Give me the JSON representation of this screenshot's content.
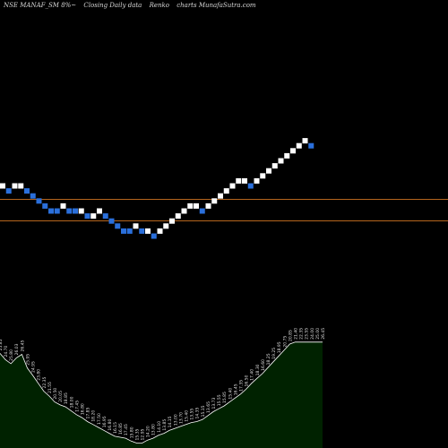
{
  "header": {
    "symbol": "NSE MANAF_SM 8%~",
    "desc": "Closing Daily data",
    "type": "Renko",
    "credit": "charts MunafaSutra.com"
  },
  "colors": {
    "background": "#000000",
    "up_brick": "#ffffff",
    "down_brick": "#2a6fdb",
    "level_lines": "#b5651d",
    "area_fill": "#002200",
    "area_line": "#ffffff"
  },
  "chart_data": {
    "type": "renko",
    "bricks": [
      {
        "dir": "up",
        "level": 0
      },
      {
        "dir": "down",
        "level": -1
      },
      {
        "dir": "up",
        "level": 0
      },
      {
        "dir": "up",
        "level": 0
      },
      {
        "dir": "down",
        "level": -1
      },
      {
        "dir": "down",
        "level": -2
      },
      {
        "dir": "down",
        "level": -3
      },
      {
        "dir": "down",
        "level": -4
      },
      {
        "dir": "down",
        "level": -5
      },
      {
        "dir": "down",
        "level": -5
      },
      {
        "dir": "up",
        "level": -4
      },
      {
        "dir": "down",
        "level": -5
      },
      {
        "dir": "down",
        "level": -5
      },
      {
        "dir": "up",
        "level": -5
      },
      {
        "dir": "down",
        "level": -6
      },
      {
        "dir": "up",
        "level": -6
      },
      {
        "dir": "up",
        "level": -5
      },
      {
        "dir": "down",
        "level": -6
      },
      {
        "dir": "down",
        "level": -7
      },
      {
        "dir": "down",
        "level": -8
      },
      {
        "dir": "down",
        "level": -9
      },
      {
        "dir": "down",
        "level": -9
      },
      {
        "dir": "up",
        "level": -8
      },
      {
        "dir": "down",
        "level": -9
      },
      {
        "dir": "up",
        "level": -9
      },
      {
        "dir": "down",
        "level": -10
      },
      {
        "dir": "up",
        "level": -9
      },
      {
        "dir": "up",
        "level": -8
      },
      {
        "dir": "up",
        "level": -7
      },
      {
        "dir": "up",
        "level": -6
      },
      {
        "dir": "up",
        "level": -5
      },
      {
        "dir": "up",
        "level": -4
      },
      {
        "dir": "up",
        "level": -4
      },
      {
        "dir": "down",
        "level": -5
      },
      {
        "dir": "up",
        "level": -4
      },
      {
        "dir": "up",
        "level": -3
      },
      {
        "dir": "up",
        "level": -2
      },
      {
        "dir": "up",
        "level": -1
      },
      {
        "dir": "up",
        "level": 0
      },
      {
        "dir": "up",
        "level": 1
      },
      {
        "dir": "up",
        "level": 1
      },
      {
        "dir": "down",
        "level": 0
      },
      {
        "dir": "up",
        "level": 1
      },
      {
        "dir": "up",
        "level": 2
      },
      {
        "dir": "up",
        "level": 3
      },
      {
        "dir": "up",
        "level": 4
      },
      {
        "dir": "up",
        "level": 5
      },
      {
        "dir": "up",
        "level": 6
      },
      {
        "dir": "up",
        "level": 7
      },
      {
        "dir": "up",
        "level": 8
      },
      {
        "dir": "up",
        "level": 9
      },
      {
        "dir": "down",
        "level": 8
      }
    ],
    "level_lines": [
      23.0,
      21.8
    ],
    "close_area": {
      "values": [
        26.45,
        25.8,
        25.4,
        26.0,
        26.35,
        24.95,
        24.2,
        23.4,
        22.6,
        22.1,
        21.5,
        21.2,
        21.0,
        20.6,
        20.2,
        19.9,
        19.5,
        19.2,
        18.9,
        18.6,
        18.3,
        18.0,
        17.9,
        17.8,
        17.5,
        17.3,
        17.3,
        17.6,
        17.8,
        18.1,
        18.3,
        18.6,
        18.8,
        19.0,
        19.2,
        19.4,
        19.5,
        19.7,
        20.1,
        20.5,
        20.8,
        21.1,
        21.5,
        21.9,
        22.3,
        22.8,
        23.4,
        23.9,
        24.4,
        25.0,
        25.6,
        26.2,
        26.8,
        27.4,
        27.6,
        27.6,
        27.6,
        27.6,
        27.6,
        27.6
      ],
      "ylim": [
        16.8,
        28.5
      ],
      "labels": [
        "25.85",
        "24.70",
        "25.80",
        "26.03",
        "26.45",
        "25.95",
        "24.95",
        "23.80",
        "22.35",
        "21.55",
        "20.50",
        "20.05",
        "18.85",
        "18.00",
        "17.45",
        "16.80",
        "17.85",
        "18.20",
        "17.50",
        "16.95",
        "16.80",
        "16.15",
        "16.85",
        "17.45",
        "15.80",
        "15.35",
        "12.95",
        "14.20",
        "13.80",
        "14.10",
        "13.85",
        "14.15",
        "13.00",
        "13.70",
        "15.40",
        "13.55",
        "14.35",
        "15.15",
        "13.65",
        "13.73",
        "15.55",
        "15.85",
        "15.40",
        "16.45",
        "17.35",
        "16.50",
        "17.40",
        "18.30",
        "16.60",
        "18.25",
        "19.25",
        "18.95",
        "20.75",
        "20.85",
        "21.40",
        "22.35",
        "23.55",
        "24.00",
        "25.00",
        "26.45"
      ]
    }
  }
}
